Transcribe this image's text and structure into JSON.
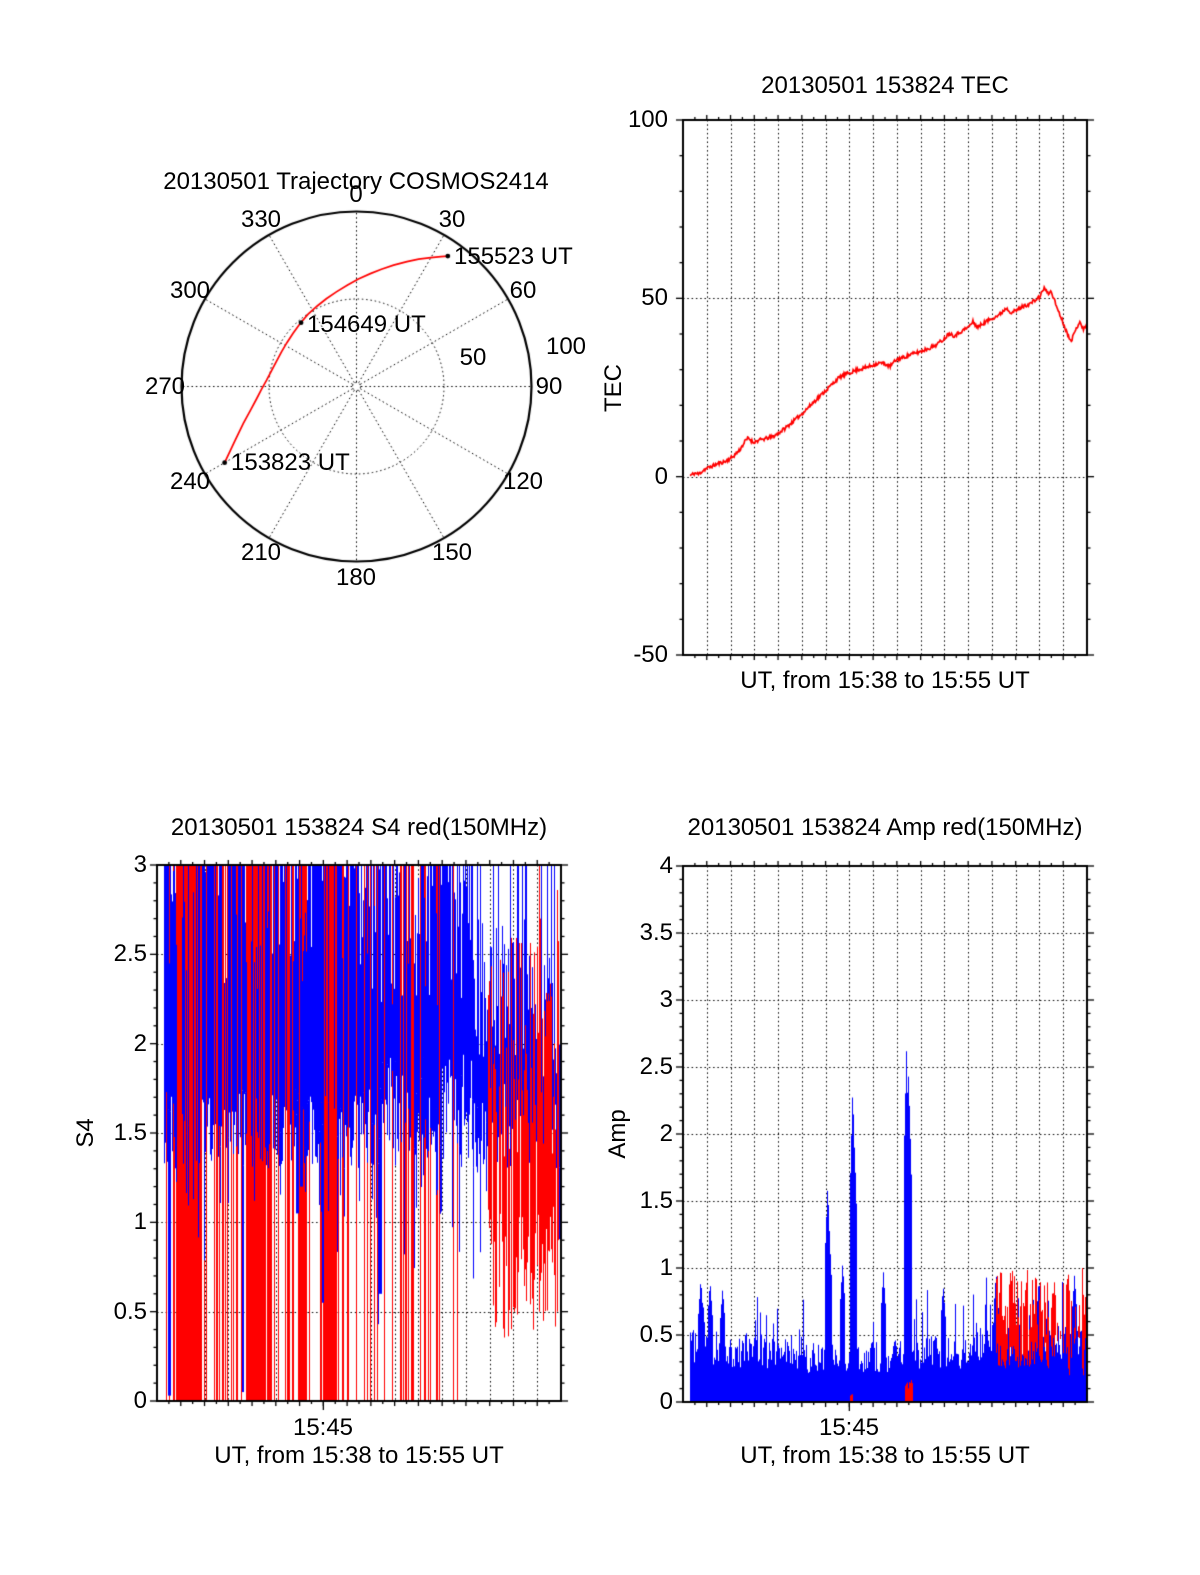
{
  "colors": {
    "red": "#ff0000",
    "blue": "#0000ff",
    "axis": "#000000",
    "background": "#ffffff"
  },
  "chart_data": [
    {
      "id": "trajectory",
      "type": "polar-trajectory",
      "title": "20130501 Trajectory COSMOS2414",
      "angle_ticks": [
        "0",
        "30",
        "60",
        "90",
        "120",
        "150",
        "180",
        "210",
        "240",
        "270",
        "300",
        "330"
      ],
      "radial_ticks": [
        "50",
        "100"
      ],
      "radial_max": 100,
      "annotations": [
        {
          "label": "153823 UT",
          "azimuth_deg": 240,
          "radius": 87
        },
        {
          "label": "154649 UT",
          "azimuth_deg": 319,
          "radius": 48.3
        },
        {
          "label": "155523 UT",
          "azimuth_deg": 35,
          "radius": 91
        }
      ],
      "trajectory_az_r": [
        [
          240,
          87
        ],
        [
          246,
          76
        ],
        [
          252,
          68
        ],
        [
          258,
          61.5
        ],
        [
          263,
          57.5
        ],
        [
          268,
          54.5
        ],
        [
          274,
          51.5
        ],
        [
          280,
          49.5
        ],
        [
          287,
          48
        ],
        [
          295,
          47.2
        ],
        [
          302,
          47
        ],
        [
          310,
          47.3
        ],
        [
          318,
          48.3
        ],
        [
          326,
          49.7
        ],
        [
          334,
          51.2
        ],
        [
          341,
          53
        ],
        [
          348,
          55.3
        ],
        [
          355,
          58.2
        ],
        [
          1,
          61.5
        ],
        [
          7,
          65
        ],
        [
          12,
          68.5
        ],
        [
          17,
          72.5
        ],
        [
          22,
          77
        ],
        [
          26,
          81
        ],
        [
          30,
          85
        ],
        [
          33,
          88.5
        ],
        [
          35,
          91
        ]
      ]
    },
    {
      "id": "tec",
      "type": "line",
      "title": "20130501 153824 TEC",
      "ylabel": "TEC",
      "xlabel": "UT, from 15:38 to 15:55 UT",
      "ylim": [
        -50,
        100
      ],
      "yticks": [
        "100",
        "50",
        "0",
        "-50"
      ],
      "x_minutes_range": [
        0,
        17
      ],
      "grid": "on",
      "seed": 11,
      "noise_amplitude": 1.0,
      "points": [
        [
          0.3,
          0.3
        ],
        [
          0.5,
          1.0
        ],
        [
          0.65,
          0.7
        ],
        [
          0.9,
          2.0
        ],
        [
          1.2,
          2.9
        ],
        [
          1.5,
          3.7
        ],
        [
          1.8,
          4.3
        ],
        [
          2.1,
          5.6
        ],
        [
          2.4,
          7.6
        ],
        [
          2.6,
          9.8
        ],
        [
          2.75,
          10.9
        ],
        [
          2.95,
          9.6
        ],
        [
          3.2,
          10.2
        ],
        [
          3.5,
          10.7
        ],
        [
          3.8,
          11.3
        ],
        [
          4.0,
          12.1
        ],
        [
          4.3,
          13.6
        ],
        [
          4.6,
          15.3
        ],
        [
          5.0,
          17.6
        ],
        [
          5.3,
          19.6
        ],
        [
          5.6,
          21.6
        ],
        [
          6.0,
          24.1
        ],
        [
          6.3,
          26.1
        ],
        [
          6.5,
          27.4
        ],
        [
          6.7,
          28.3
        ],
        [
          7.0,
          29.1
        ],
        [
          7.3,
          29.9
        ],
        [
          7.6,
          30.4
        ],
        [
          8.0,
          31.3
        ],
        [
          8.3,
          31.9
        ],
        [
          8.5,
          31.6
        ],
        [
          8.7,
          30.9
        ],
        [
          9.0,
          32.9
        ],
        [
          9.3,
          33.5
        ],
        [
          9.6,
          34.3
        ],
        [
          10.0,
          35.1
        ],
        [
          10.3,
          35.9
        ],
        [
          10.6,
          36.7
        ],
        [
          11.0,
          38.7
        ],
        [
          11.2,
          40.3
        ],
        [
          11.4,
          39.5
        ],
        [
          11.7,
          40.7
        ],
        [
          12.0,
          41.9
        ],
        [
          12.2,
          43.4
        ],
        [
          12.4,
          41.9
        ],
        [
          12.7,
          43.3
        ],
        [
          13.0,
          44.4
        ],
        [
          13.3,
          45.3
        ],
        [
          13.6,
          47.3
        ],
        [
          13.8,
          46.1
        ],
        [
          14.0,
          46.5
        ],
        [
          14.3,
          47.7
        ],
        [
          14.6,
          48.5
        ],
        [
          15.0,
          50.3
        ],
        [
          15.2,
          53.0
        ],
        [
          15.35,
          51.3
        ],
        [
          15.5,
          51.9
        ],
        [
          15.7,
          48.1
        ],
        [
          16.0,
          43.1
        ],
        [
          16.2,
          39.6
        ],
        [
          16.35,
          38.3
        ],
        [
          16.5,
          40.7
        ],
        [
          16.7,
          43.7
        ],
        [
          16.85,
          41.1
        ],
        [
          17.0,
          42.9
        ]
      ]
    },
    {
      "id": "s4",
      "type": "scintillation-noise",
      "title": "20130501 153824 S4 red(150MHz)",
      "ylabel": "S4",
      "xlabel": "UT, from 15:38 to 15:55 UT",
      "ylim": [
        0,
        3
      ],
      "yticks": [
        "3",
        "2.5",
        "2",
        "1.5",
        "1",
        "0.5",
        "0"
      ],
      "xtick_label": "15:45",
      "xtick_minute": 7,
      "x_minutes_range": [
        0,
        17
      ],
      "seed": 23,
      "blue_band": {
        "segments": [
          {
            "f0": 0.0,
            "f1": 0.55,
            "lo": [
              1.3,
              1.75
            ],
            "hi": [
              2.3,
              3.0
            ],
            "p_clip": 0.6
          },
          {
            "f0": 0.55,
            "f1": 0.78,
            "lo": [
              1.35,
              1.95
            ],
            "hi": [
              2.2,
              3.0
            ],
            "p_clip": 0.45
          },
          {
            "f0": 0.78,
            "f1": 0.92,
            "lo": [
              1.3,
              1.8
            ],
            "hi": [
              1.9,
              2.7
            ],
            "p_clip": 0.12
          },
          {
            "f0": 0.92,
            "f1": 1.01,
            "lo": [
              1.3,
              1.7
            ],
            "hi": [
              1.8,
              2.5
            ],
            "p_clip": 0.08
          }
        ],
        "dips": [
          {
            "f": 0.029,
            "v": 0.03
          },
          {
            "f": 0.21,
            "v": 0.05
          },
          {
            "f": 0.348,
            "v": 1.05
          },
          {
            "f": 0.355,
            "v": 1.2
          },
          {
            "f": 0.41,
            "v": 0.55
          },
          {
            "f": 0.547,
            "v": 0.43
          },
          {
            "f": 0.552,
            "v": 0.6
          }
        ]
      },
      "red_full_lines": {
        "value_range": [
          0,
          3
        ],
        "segments": [
          {
            "f0": 0.02,
            "f1": 0.045,
            "density": 0.35
          },
          {
            "f0": 0.045,
            "f1": 0.11,
            "density": 0.95
          },
          {
            "f0": 0.11,
            "f1": 0.22,
            "density": 0.4
          },
          {
            "f0": 0.22,
            "f1": 0.28,
            "density": 0.92
          },
          {
            "f0": 0.28,
            "f1": 0.34,
            "density": 0.3
          },
          {
            "f0": 0.345,
            "f1": 0.37,
            "density": 0.9
          },
          {
            "f0": 0.37,
            "f1": 0.405,
            "density": 0.35
          },
          {
            "f0": 0.405,
            "f1": 0.445,
            "density": 0.92
          },
          {
            "f0": 0.445,
            "f1": 0.62,
            "density": 0.25
          },
          {
            "f0": 0.62,
            "f1": 0.75,
            "density": 0.15
          }
        ]
      },
      "red_cluster": {
        "f0": 0.82,
        "f1": 1.005,
        "lo": [
          0.35,
          1.1
        ],
        "hi": [
          1.35,
          2.6
        ],
        "density": 0.85,
        "tall_spikes": [
          {
            "f": 0.945,
            "v": 3.0
          },
          {
            "f": 0.99,
            "v": 2.86
          }
        ]
      }
    },
    {
      "id": "amp",
      "type": "scintillation-noise",
      "title": "20130501 153824 Amp red(150MHz)",
      "ylabel": "Amp",
      "xlabel": "UT, from 15:38 to 15:55 UT",
      "ylim": [
        0,
        4
      ],
      "yticks": [
        "4",
        "3.5",
        "3",
        "2.5",
        "2",
        "1.5",
        "1",
        "0.5",
        "0"
      ],
      "xtick_label": "15:45",
      "xtick_minute": 7,
      "x_minutes_range": [
        0,
        17
      ],
      "seed": 41,
      "blue_noise": {
        "segments": [
          {
            "f0": 0.0,
            "f1": 0.1,
            "mean": 0.42,
            "spread": 0.14
          },
          {
            "f0": 0.1,
            "f1": 0.3,
            "mean": 0.38,
            "spread": 0.13
          },
          {
            "f0": 0.3,
            "f1": 0.52,
            "mean": 0.33,
            "spread": 0.12
          },
          {
            "f0": 0.52,
            "f1": 0.72,
            "mean": 0.37,
            "spread": 0.13
          },
          {
            "f0": 0.72,
            "f1": 1.01,
            "mean": 0.45,
            "spread": 0.15
          }
        ],
        "tail_p": 0.15,
        "tail_extra": 0.4
      },
      "blue_spikes": [
        {
          "f": 0.043,
          "v": 0.92
        },
        {
          "f": 0.066,
          "v": 0.9
        },
        {
          "f": 0.097,
          "v": 0.85
        },
        {
          "f": 0.357,
          "v": 1.62
        },
        {
          "f": 0.361,
          "v": 1.28
        },
        {
          "f": 0.394,
          "v": 1.04
        },
        {
          "f": 0.419,
          "v": 2.35
        },
        {
          "f": 0.4235,
          "v": 1.92
        },
        {
          "f": 0.495,
          "v": 0.97
        },
        {
          "f": 0.552,
          "v": 2.62
        },
        {
          "f": 0.5565,
          "v": 2.48
        },
        {
          "f": 0.5595,
          "v": 2.22
        },
        {
          "f": 0.643,
          "v": 0.87
        },
        {
          "f": 0.774,
          "v": 0.97
        },
        {
          "f": 0.88,
          "v": 0.92
        },
        {
          "f": 0.968,
          "v": 0.95
        }
      ],
      "red_noise": {
        "cluster": {
          "f0": 0.775,
          "f1": 0.905,
          "lo": [
            0.25,
            0.45
          ],
          "hi": [
            0.5,
            1.0
          ],
          "density": 0.9
        },
        "sparse": {
          "f0": 0.905,
          "f1": 1.005,
          "lo": [
            0.3,
            0.5
          ],
          "hi": [
            0.5,
            0.95
          ],
          "density": 0.45
        },
        "bottom_blocks": [
          {
            "f0": 0.549,
            "f1": 0.568,
            "v": 0.18
          },
          {
            "f0": 0.413,
            "f1": 0.419,
            "v": 0.06
          }
        ],
        "edge_spikes": [
          {
            "f": 0.952,
            "v": 0.95
          },
          {
            "f": 0.988,
            "v": 1.0
          }
        ]
      }
    }
  ]
}
